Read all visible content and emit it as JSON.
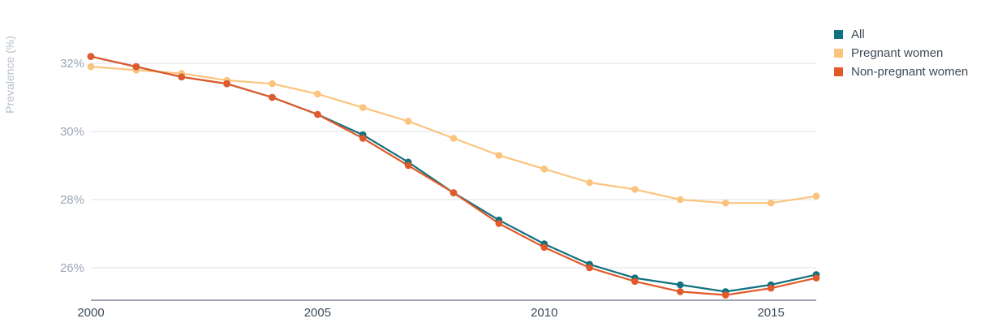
{
  "chart_data": {
    "type": "line",
    "ylabel": "Prevalence (%)",
    "xlabel": "",
    "ylim": [
      25,
      33
    ],
    "xlim": [
      2000,
      2016
    ],
    "y_ticks": [
      {
        "value": 26,
        "label": "26%"
      },
      {
        "value": 28,
        "label": "28%"
      },
      {
        "value": 30,
        "label": "30%"
      },
      {
        "value": 32,
        "label": "32%"
      }
    ],
    "x_ticks": [
      {
        "value": 2000,
        "label": "2000"
      },
      {
        "value": 2005,
        "label": "2005"
      },
      {
        "value": 2010,
        "label": "2010"
      },
      {
        "value": 2015,
        "label": "2015"
      }
    ],
    "grid": "horizontal",
    "legend_position": "top-right",
    "x": [
      2000,
      2001,
      2002,
      2003,
      2004,
      2005,
      2006,
      2007,
      2008,
      2009,
      2010,
      2011,
      2012,
      2013,
      2014,
      2015,
      2016
    ],
    "series": [
      {
        "name": "Pregnant women",
        "color": "#fbc47e",
        "values": [
          31.9,
          31.8,
          31.7,
          31.5,
          31.4,
          31.1,
          30.7,
          30.3,
          29.8,
          29.3,
          28.9,
          28.5,
          28.3,
          28.0,
          27.9,
          27.9,
          28.1
        ]
      },
      {
        "name": "All",
        "color": "#11717f",
        "values": [
          32.2,
          31.9,
          31.6,
          31.4,
          31.0,
          30.5,
          29.9,
          29.1,
          28.2,
          27.4,
          26.7,
          26.1,
          25.7,
          25.5,
          25.3,
          25.5,
          25.8
        ]
      },
      {
        "name": "Non-pregnant women",
        "color": "#e2592a",
        "values": [
          32.2,
          31.9,
          31.6,
          31.4,
          31.0,
          30.5,
          29.8,
          29.0,
          28.2,
          27.3,
          26.6,
          26.0,
          25.6,
          25.3,
          25.2,
          25.4,
          25.7
        ]
      }
    ],
    "legend": [
      {
        "label": "All",
        "color": "#11717f"
      },
      {
        "label": "Pregnant women",
        "color": "#fbc47e"
      },
      {
        "label": "Non-pregnant women",
        "color": "#e2592a"
      }
    ]
  }
}
